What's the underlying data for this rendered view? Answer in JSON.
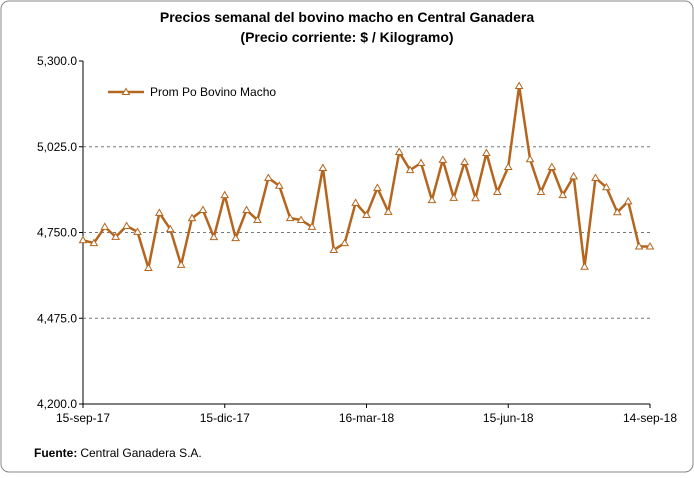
{
  "chart_data": {
    "type": "line",
    "title": "Precios semanal del bovino  macho en Central Ganadera",
    "subtitle": "(Precio corriente: $ / Kilogramo)",
    "categories": [
      "15-sep-17",
      null,
      null,
      null,
      null,
      null,
      null,
      null,
      null,
      null,
      null,
      null,
      null,
      "15-dic-17",
      null,
      null,
      null,
      null,
      null,
      null,
      null,
      null,
      null,
      null,
      null,
      null,
      "16-mar-18",
      null,
      null,
      null,
      null,
      null,
      null,
      null,
      null,
      null,
      null,
      null,
      null,
      "15-jun-18",
      null,
      null,
      null,
      null,
      null,
      null,
      null,
      null,
      null,
      null,
      null,
      null,
      "14-sep-18"
    ],
    "series": [
      {
        "name": "Prom Po Bovino Macho",
        "color": "#b5651d",
        "values": [
          4725,
          4716,
          4768,
          4736,
          4771,
          4752,
          4636,
          4813,
          4761,
          4646,
          4796,
          4822,
          4735,
          4870,
          4732,
          4822,
          4790,
          4925,
          4900,
          4796,
          4790,
          4768,
          4957,
          4694,
          4716,
          4845,
          4806,
          4893,
          4816,
          5008,
          4950,
          4973,
          4854,
          4983,
          4861,
          4976,
          4860,
          5005,
          4880,
          4960,
          5220,
          4985,
          4880,
          4960,
          4870,
          4930,
          4640,
          4925,
          4895,
          4815,
          4850,
          4705,
          4705
        ]
      }
    ],
    "ylim": [
      4200,
      5300
    ],
    "yticks": [
      {
        "value": 4200,
        "label": "4,200.0"
      },
      {
        "value": 4475,
        "label": "4,475.0"
      },
      {
        "value": 4750,
        "label": "4,750.0"
      },
      {
        "value": 5025,
        "label": "5,025.0"
      },
      {
        "value": 5300,
        "label": "5,300.0"
      }
    ],
    "grid": true,
    "legend": "top-left",
    "source": {
      "label": "Fuente:",
      "text": "Central Ganadera S.A."
    }
  }
}
